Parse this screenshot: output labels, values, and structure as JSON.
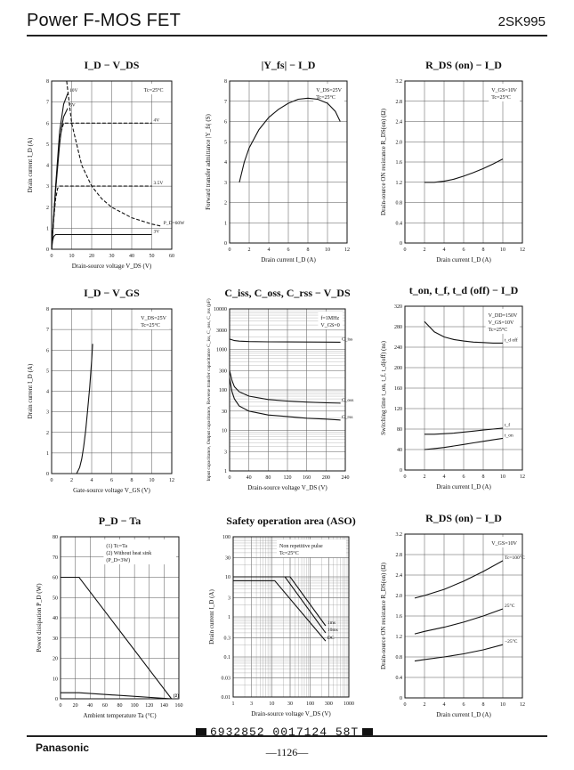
{
  "header": {
    "title": "Power F-MOS FET",
    "part_number": "2SK995"
  },
  "footer": {
    "brand": "Panasonic",
    "barcode_text": "6932852 0017124 58T",
    "page": "—1126—"
  },
  "chart_data": [
    {
      "id": "id-vds",
      "type": "line",
      "title": "I_D − V_DS",
      "xlabel": "Drain-source voltage V_DS (V)",
      "ylabel": "Drain current I_D (A)",
      "xlim": [
        0,
        60
      ],
      "ylim": [
        0,
        8
      ],
      "xticks": [
        0,
        10,
        20,
        30,
        40,
        50,
        60
      ],
      "xticklabels": [
        "0",
        "10",
        "20",
        "30",
        "40",
        "50",
        "60"
      ],
      "yticks": [
        0,
        1,
        2,
        3,
        4,
        5,
        6,
        7,
        8
      ],
      "yticklabels": [
        "0",
        "1",
        "2",
        "3",
        "4",
        "5",
        "6",
        "7",
        "8"
      ],
      "legend": [
        "Tc=25°C"
      ],
      "series": [
        {
          "name": "10V",
          "dash": false,
          "x": [
            0,
            2,
            4,
            6,
            8
          ],
          "y": [
            0,
            3.0,
            5.6,
            6.9,
            7.4
          ]
        },
        {
          "name": "5V",
          "dash": false,
          "x": [
            0,
            2,
            4,
            5,
            6,
            8
          ],
          "y": [
            0,
            2.8,
            5.0,
            5.8,
            6.3,
            6.7
          ]
        },
        {
          "name": "4V",
          "dash": true,
          "x": [
            0,
            1.5,
            3,
            4.5,
            6,
            10,
            20,
            30,
            40,
            50
          ],
          "y": [
            0,
            2.2,
            4.2,
            5.5,
            6.0,
            6.0,
            6.0,
            6.0,
            6.0,
            6.0
          ]
        },
        {
          "name": "3.5V",
          "dash": true,
          "x": [
            0,
            1,
            2,
            3,
            4,
            10,
            20,
            30,
            40,
            50
          ],
          "y": [
            0,
            1.4,
            2.4,
            2.9,
            3.0,
            3.0,
            3.0,
            3.0,
            3.0,
            3.0
          ]
        },
        {
          "name": "3V",
          "dash": false,
          "x": [
            0,
            0.5,
            1,
            2,
            10,
            20,
            30,
            40,
            50
          ],
          "y": [
            0,
            0.4,
            0.6,
            0.7,
            0.7,
            0.7,
            0.7,
            0.7,
            0.7
          ]
        },
        {
          "name": "P_D=60W",
          "dash": true,
          "x": [
            7.5,
            10,
            15,
            20,
            25,
            30,
            40,
            50,
            55
          ],
          "y": [
            8,
            6.0,
            4.0,
            3.0,
            2.4,
            2.0,
            1.5,
            1.2,
            1.09
          ]
        }
      ],
      "annotations": [
        "4V",
        "3.5V",
        "3V",
        "P_D=60W",
        "10V",
        "5V"
      ]
    },
    {
      "id": "yfs-id",
      "type": "line",
      "title": "|Y_fs| − I_D",
      "xlabel": "Drain current I_D (A)",
      "ylabel": "Forward transfer admittance |Y_fs| (S)",
      "xlim": [
        0,
        12
      ],
      "ylim": [
        0,
        8
      ],
      "xticks": [
        0,
        2,
        4,
        6,
        8,
        10,
        12
      ],
      "xticklabels": [
        "0",
        "2",
        "4",
        "6",
        "8",
        "10",
        "12"
      ],
      "yticks": [
        0,
        1,
        2,
        3,
        4,
        5,
        6,
        7,
        8
      ],
      "yticklabels": [
        "0",
        "1",
        "2",
        "3",
        "4",
        "5",
        "6",
        "7",
        "8"
      ],
      "legend": [
        "V_DS=25V",
        "Tc=25°C"
      ],
      "series": [
        {
          "name": "",
          "dash": false,
          "x": [
            1,
            1.5,
            2,
            3,
            4,
            5,
            6,
            7,
            8,
            9,
            10,
            10.8,
            11.3
          ],
          "y": [
            3.0,
            4.0,
            4.7,
            5.6,
            6.2,
            6.6,
            6.9,
            7.1,
            7.15,
            7.1,
            6.9,
            6.5,
            6.0
          ]
        }
      ]
    },
    {
      "id": "rds-id-1",
      "type": "line",
      "title": "R_DS (on) − I_D",
      "xlabel": "Drain current I_D (A)",
      "ylabel": "Drain-source ON resistance R_DS(on) (Ω)",
      "xlim": [
        0,
        12
      ],
      "ylim": [
        0,
        3.2
      ],
      "xticks": [
        0,
        2,
        4,
        6,
        8,
        10,
        12
      ],
      "xticklabels": [
        "0",
        "2",
        "4",
        "6",
        "8",
        "10",
        "12"
      ],
      "yticks": [
        0,
        0.4,
        0.8,
        1.2,
        1.6,
        2.0,
        2.4,
        2.8,
        3.2
      ],
      "yticklabels": [
        "0",
        "0.4",
        "0.8",
        "1.2",
        "1.6",
        "2.0",
        "2.4",
        "2.8",
        "3.2"
      ],
      "legend": [
        "V_GS=10V",
        "Tc=25°C"
      ],
      "series": [
        {
          "name": "",
          "dash": false,
          "x": [
            2,
            3,
            4,
            5,
            6,
            7,
            8,
            9,
            10
          ],
          "y": [
            1.2,
            1.2,
            1.22,
            1.26,
            1.32,
            1.39,
            1.47,
            1.56,
            1.66
          ]
        }
      ]
    },
    {
      "id": "id-vgs",
      "type": "line",
      "title": "I_D − V_GS",
      "xlabel": "Gate-source voltage V_GS (V)",
      "ylabel": "Drain current I_D (A)",
      "xlim": [
        0,
        12
      ],
      "ylim": [
        0,
        8
      ],
      "xticks": [
        0,
        2,
        4,
        6,
        8,
        10,
        12
      ],
      "xticklabels": [
        "0",
        "2",
        "4",
        "6",
        "8",
        "10",
        "12"
      ],
      "yticks": [
        0,
        1,
        2,
        3,
        4,
        5,
        6,
        7,
        8
      ],
      "yticklabels": [
        "0",
        "1",
        "2",
        "3",
        "4",
        "5",
        "6",
        "7",
        "8"
      ],
      "legend": [
        "V_DS=25V",
        "Tc=25°C"
      ],
      "series": [
        {
          "name": "",
          "dash": false,
          "x": [
            2.5,
            2.8,
            3.0,
            3.2,
            3.4,
            3.6,
            3.8,
            4.0,
            4.1
          ],
          "y": [
            0,
            0.3,
            0.7,
            1.3,
            2.1,
            3.1,
            4.2,
            5.5,
            6.3
          ]
        }
      ]
    },
    {
      "id": "cap-vds",
      "type": "line",
      "title": "C_iss, C_oss, C_rss − V_DS",
      "xlabel": "Drain-source voltage V_DS (V)",
      "ylabel": "Input capacitance, Output capacitance, Reverse transfer capacitance C_iss, C_oss, C_rss (pF)",
      "xlim": [
        0,
        240
      ],
      "ylim": [
        1,
        10000
      ],
      "yscale": "log",
      "xticks": [
        0,
        40,
        80,
        120,
        160,
        200,
        240
      ],
      "xticklabels": [
        "0",
        "40",
        "80",
        "120",
        "160",
        "200",
        "240"
      ],
      "yticks": [
        1,
        3,
        10,
        30,
        100,
        300,
        1000,
        3000,
        10000
      ],
      "yticklabels": [
        "1",
        "3",
        "10",
        "30",
        "100",
        "300",
        "1000",
        "3000",
        "10000"
      ],
      "legend": [
        "f=1MHz",
        "V_GS=0"
      ],
      "series": [
        {
          "name": "C_iss",
          "dash": false,
          "x": [
            0,
            10,
            20,
            40,
            80,
            120,
            160,
            200,
            230
          ],
          "y": [
            1800,
            1650,
            1600,
            1560,
            1540,
            1530,
            1520,
            1515,
            1510
          ]
        },
        {
          "name": "C_oss",
          "dash": false,
          "x": [
            0,
            5,
            10,
            20,
            40,
            80,
            120,
            160,
            200,
            230
          ],
          "y": [
            300,
            170,
            120,
            90,
            70,
            58,
            53,
            50,
            48,
            47
          ]
        },
        {
          "name": "C_rss",
          "dash": false,
          "x": [
            0,
            5,
            10,
            20,
            40,
            80,
            120,
            160,
            200,
            230
          ],
          "y": [
            200,
            90,
            60,
            40,
            30,
            24,
            22,
            20,
            19,
            18
          ]
        }
      ]
    },
    {
      "id": "ton-id",
      "type": "line",
      "title": "t_on, t_f, t_d (off) − I_D",
      "xlabel": "Drain current I_D (A)",
      "ylabel": "Switching time t_on, t_f, t_d(off) (ns)",
      "xlim": [
        0,
        12
      ],
      "ylim": [
        0,
        320
      ],
      "xticks": [
        0,
        2,
        4,
        6,
        8,
        10,
        12
      ],
      "xticklabels": [
        "0",
        "2",
        "4",
        "6",
        "8",
        "10",
        "12"
      ],
      "yticks": [
        0,
        40,
        80,
        120,
        160,
        200,
        240,
        280,
        320
      ],
      "yticklabels": [
        "0",
        "40",
        "80",
        "120",
        "160",
        "200",
        "240",
        "280",
        "320"
      ],
      "legend": [
        "V_DD=150V",
        "V_GS=10V",
        "Tc=25°C"
      ],
      "series": [
        {
          "name": "t_d off",
          "dash": false,
          "x": [
            2,
            3,
            4,
            5,
            6,
            7,
            8,
            9,
            10
          ],
          "y": [
            290,
            270,
            260,
            255,
            252,
            250,
            249,
            248,
            248
          ]
        },
        {
          "name": "t_f",
          "dash": false,
          "x": [
            2,
            3,
            4,
            5,
            6,
            7,
            8,
            9,
            10
          ],
          "y": [
            70,
            70,
            71,
            72,
            74,
            76,
            78,
            80,
            82
          ]
        },
        {
          "name": "t_on",
          "dash": false,
          "x": [
            2,
            3,
            4,
            5,
            6,
            7,
            8,
            9,
            10
          ],
          "y": [
            40,
            42,
            44,
            47,
            50,
            53,
            56,
            59,
            62
          ]
        }
      ]
    },
    {
      "id": "pd-ta",
      "type": "line",
      "title": "P_D − Ta",
      "xlabel": "Ambient temperature Ta (°C)",
      "ylabel": "Power dissipation P_D (W)",
      "xlim": [
        0,
        160
      ],
      "ylim": [
        0,
        80
      ],
      "xticks": [
        0,
        20,
        40,
        60,
        80,
        100,
        120,
        140,
        160
      ],
      "xticklabels": [
        "0",
        "20",
        "40",
        "60",
        "80",
        "100",
        "120",
        "140",
        "160"
      ],
      "yticks": [
        0,
        10,
        20,
        30,
        40,
        50,
        60,
        70,
        80
      ],
      "yticklabels": [
        "0",
        "10",
        "20",
        "30",
        "40",
        "50",
        "60",
        "70",
        "80"
      ],
      "legend": [
        "(1) Tc=Ta",
        "(2) Without heat sink",
        "(P_D=3W)"
      ],
      "series": [
        {
          "name": "(1)",
          "dash": false,
          "x": [
            0,
            25,
            150
          ],
          "y": [
            60,
            60,
            0
          ]
        },
        {
          "name": "(2)",
          "dash": false,
          "x": [
            0,
            25,
            150
          ],
          "y": [
            3,
            3,
            0
          ]
        }
      ]
    },
    {
      "id": "aso",
      "type": "line",
      "title": "Safety operation area (ASO)",
      "xlabel": "Drain-source voltage V_DS (V)",
      "ylabel": "Drain current I_D (A)",
      "xlim": [
        1,
        1000
      ],
      "ylim": [
        0.01,
        100
      ],
      "xscale": "log",
      "yscale": "log",
      "xticks": [
        1,
        3,
        10,
        30,
        100,
        300,
        1000
      ],
      "xticklabels": [
        "1",
        "3",
        "10",
        "30",
        "100",
        "300",
        "1000"
      ],
      "yticks": [
        0.01,
        0.03,
        0.1,
        0.3,
        1,
        3,
        10,
        30,
        100
      ],
      "yticklabels": [
        "0.01",
        "0.03",
        "0.1",
        "0.3",
        "1",
        "3",
        "10",
        "30",
        "100"
      ],
      "legend": [
        "Non repetitive pulse",
        "Tc=25°C"
      ],
      "series": [
        {
          "name": "1ms",
          "dash": false,
          "x": [
            1,
            30,
            250
          ],
          "y": [
            10,
            10,
            0.6
          ]
        },
        {
          "name": "10ms",
          "dash": false,
          "x": [
            1,
            22,
            250
          ],
          "y": [
            10,
            10,
            0.4
          ]
        },
        {
          "name": "DC",
          "dash": false,
          "x": [
            1,
            12,
            250
          ],
          "y": [
            8,
            8,
            0.25
          ]
        }
      ],
      "annotations": [
        "I_DP",
        "I_D",
        "1ms",
        "10ms",
        "DC"
      ]
    },
    {
      "id": "rds-id-2",
      "type": "line",
      "title": "R_DS (on) − I_D",
      "xlabel": "Drain current I_D (A)",
      "ylabel": "Drain-source ON resistance R_DS(on) (Ω)",
      "xlim": [
        0,
        12
      ],
      "ylim": [
        0,
        3.2
      ],
      "xticks": [
        0,
        2,
        4,
        6,
        8,
        10,
        12
      ],
      "xticklabels": [
        "0",
        "2",
        "4",
        "6",
        "8",
        "10",
        "12"
      ],
      "yticks": [
        0,
        0.4,
        0.8,
        1.2,
        1.6,
        2.0,
        2.4,
        2.8,
        3.2
      ],
      "yticklabels": [
        "0",
        "0.4",
        "0.8",
        "1.2",
        "1.6",
        "2.0",
        "2.4",
        "2.8",
        "3.2"
      ],
      "legend": [
        "V_GS=10V"
      ],
      "series": [
        {
          "name": "Tc=100°C",
          "dash": false,
          "x": [
            1,
            2,
            4,
            6,
            8,
            10
          ],
          "y": [
            1.95,
            2.0,
            2.12,
            2.28,
            2.47,
            2.68
          ]
        },
        {
          "name": "25°C",
          "dash": false,
          "x": [
            1,
            2,
            4,
            6,
            8,
            10
          ],
          "y": [
            1.25,
            1.3,
            1.38,
            1.48,
            1.6,
            1.74
          ]
        },
        {
          "name": "−25°C",
          "dash": false,
          "x": [
            1,
            2,
            4,
            6,
            8,
            10
          ],
          "y": [
            0.72,
            0.75,
            0.8,
            0.86,
            0.94,
            1.04
          ]
        }
      ]
    }
  ]
}
